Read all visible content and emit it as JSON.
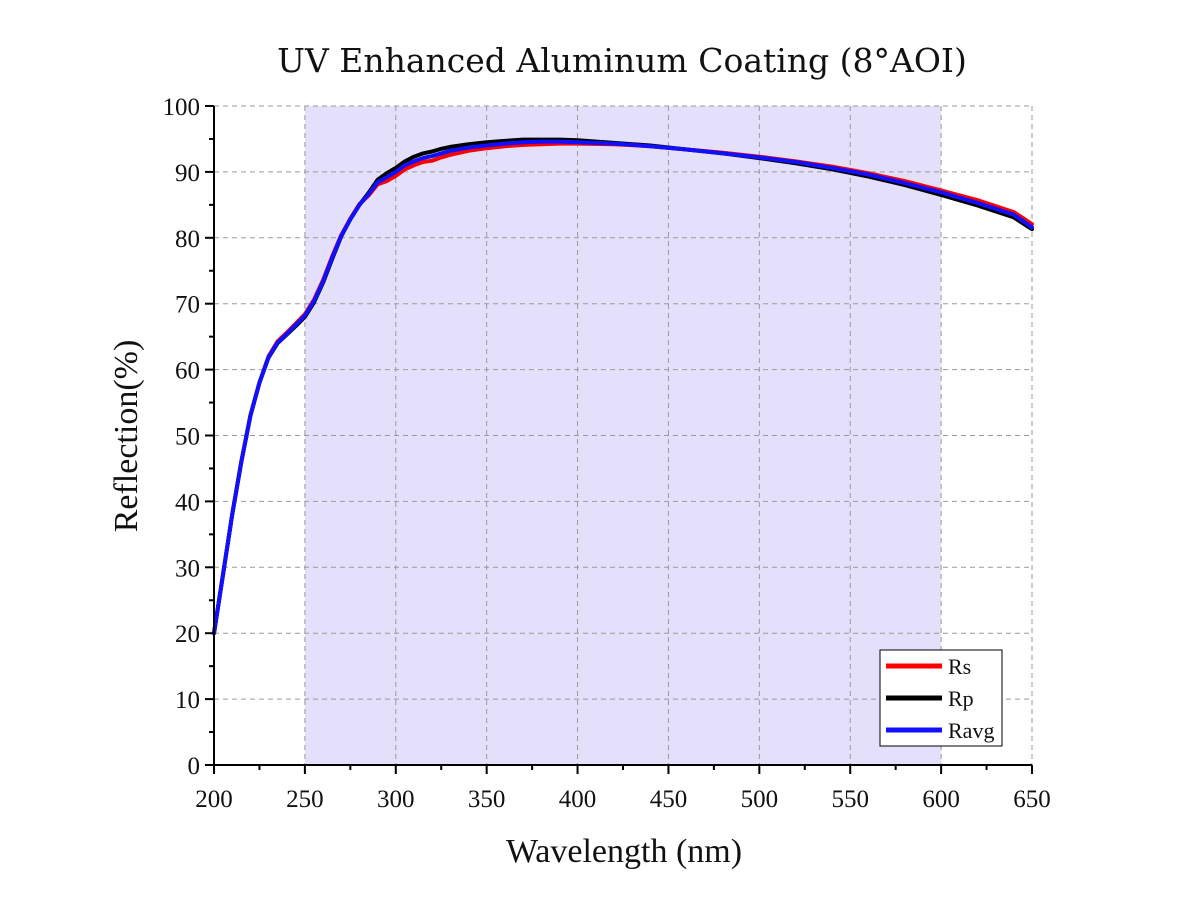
{
  "chart_data": {
    "type": "line",
    "title": "UV Enhanced Aluminum Coating (8°AOI)",
    "xlabel": "Wavelength (nm)",
    "ylabel": "Reflection(%)",
    "xlim": [
      200,
      650
    ],
    "ylim": [
      0,
      100
    ],
    "x_ticks": [
      200,
      250,
      300,
      350,
      400,
      450,
      500,
      550,
      600,
      650
    ],
    "y_ticks": [
      0,
      10,
      20,
      30,
      40,
      50,
      60,
      70,
      80,
      90,
      100
    ],
    "grid": true,
    "shaded_region": {
      "x_start": 250,
      "x_end": 600,
      "color": "#e4e0fb"
    },
    "legend_position": "bottom-right",
    "series": [
      {
        "name": "Rs",
        "color": "#ff0000",
        "x": [
          200,
          205,
          210,
          215,
          220,
          225,
          230,
          235,
          240,
          245,
          250,
          255,
          260,
          265,
          270,
          275,
          280,
          285,
          290,
          295,
          300,
          305,
          310,
          315,
          320,
          325,
          330,
          340,
          350,
          360,
          370,
          380,
          390,
          400,
          420,
          440,
          460,
          480,
          500,
          520,
          540,
          560,
          580,
          600,
          620,
          640,
          650
        ],
        "y": [
          20,
          29,
          38,
          46,
          53,
          58,
          62,
          64.3,
          65.6,
          67,
          68.4,
          70.6,
          73.6,
          77.2,
          80.4,
          82.9,
          85.1,
          86.4,
          88.1,
          88.6,
          89.4,
          90.4,
          91,
          91.5,
          91.7,
          92.2,
          92.6,
          93.2,
          93.6,
          93.9,
          94.1,
          94.2,
          94.3,
          94.3,
          94.2,
          93.9,
          93.4,
          92.9,
          92.3,
          91.6,
          90.8,
          89.8,
          88.6,
          87.2,
          85.7,
          83.9,
          82.1
        ]
      },
      {
        "name": "Rp",
        "color": "#000000",
        "x": [
          200,
          205,
          210,
          215,
          220,
          225,
          230,
          235,
          240,
          245,
          250,
          255,
          260,
          265,
          270,
          275,
          280,
          285,
          290,
          295,
          300,
          305,
          310,
          315,
          320,
          325,
          330,
          340,
          350,
          360,
          370,
          380,
          390,
          400,
          420,
          440,
          460,
          480,
          500,
          520,
          540,
          560,
          580,
          600,
          620,
          640,
          650
        ],
        "y": [
          20,
          29,
          38,
          46,
          53,
          58,
          61.8,
          64,
          65.3,
          66.6,
          68,
          70.2,
          73.2,
          76.8,
          80.2,
          82.8,
          85,
          86.8,
          88.8,
          89.8,
          90.6,
          91.6,
          92.3,
          92.8,
          93.1,
          93.5,
          93.8,
          94.2,
          94.5,
          94.7,
          94.9,
          94.9,
          94.9,
          94.8,
          94.4,
          94,
          93.4,
          92.8,
          92.1,
          91.3,
          90.4,
          89.3,
          88,
          86.5,
          84.9,
          83.1,
          81.3
        ]
      },
      {
        "name": "Ravg",
        "color": "#1010ff",
        "x": [
          200,
          205,
          210,
          215,
          220,
          225,
          230,
          235,
          240,
          245,
          250,
          255,
          260,
          265,
          270,
          275,
          280,
          285,
          290,
          295,
          300,
          305,
          310,
          315,
          320,
          325,
          330,
          340,
          350,
          360,
          370,
          380,
          390,
          400,
          420,
          440,
          460,
          480,
          500,
          520,
          540,
          560,
          580,
          600,
          620,
          640,
          650
        ],
        "y": [
          20,
          29,
          38,
          46,
          53,
          58,
          61.9,
          64.1,
          65.4,
          66.8,
          68.2,
          70.4,
          73.4,
          77,
          80.3,
          82.8,
          85,
          86.6,
          88.4,
          89.2,
          90,
          91,
          91.6,
          92.1,
          92.4,
          92.8,
          93.2,
          93.7,
          94,
          94.3,
          94.5,
          94.6,
          94.6,
          94.5,
          94.3,
          93.9,
          93.4,
          92.8,
          92.2,
          91.5,
          90.6,
          89.6,
          88.3,
          86.9,
          85.3,
          83.5,
          81.6
        ]
      }
    ]
  }
}
